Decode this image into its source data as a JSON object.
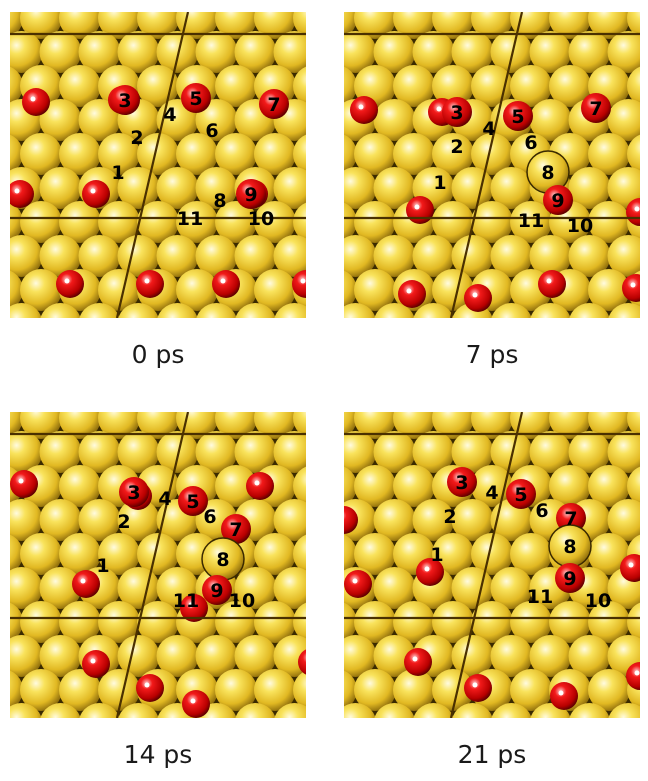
{
  "panels": [
    {
      "caption": "0 ps",
      "oxygen": [
        [
          26,
          90
        ],
        [
          112,
          88
        ],
        [
          186,
          86
        ],
        [
          264,
          92
        ],
        [
          86,
          182
        ],
        [
          244,
          182
        ],
        [
          10,
          182
        ],
        [
          320,
          182
        ],
        [
          60,
          272
        ],
        [
          140,
          272
        ],
        [
          216,
          272
        ],
        [
          296,
          272
        ]
      ],
      "labeled": [
        {
          "text": "1",
          "x": 108,
          "y": 160,
          "red": false,
          "ring": false
        },
        {
          "text": "2",
          "x": 127,
          "y": 125,
          "red": false,
          "ring": false
        },
        {
          "text": "3",
          "x": 115,
          "y": 88,
          "red": true,
          "ring": false
        },
        {
          "text": "4",
          "x": 160,
          "y": 102,
          "red": false,
          "ring": false
        },
        {
          "text": "5",
          "x": 186,
          "y": 86,
          "red": true,
          "ring": false
        },
        {
          "text": "6",
          "x": 202,
          "y": 118,
          "red": false,
          "ring": false
        },
        {
          "text": "7",
          "x": 264,
          "y": 92,
          "red": true,
          "ring": false
        },
        {
          "text": "8",
          "x": 210,
          "y": 188,
          "red": false,
          "ring": false
        },
        {
          "text": "9",
          "x": 241,
          "y": 182,
          "red": true,
          "ring": false
        },
        {
          "text": "10",
          "x": 251,
          "y": 206,
          "red": false,
          "ring": false
        },
        {
          "text": "11",
          "x": 180,
          "y": 206,
          "red": false,
          "ring": false
        }
      ]
    },
    {
      "caption": "7 ps",
      "oxygen": [
        [
          20,
          98
        ],
        [
          98,
          100
        ],
        [
          174,
          104
        ],
        [
          252,
          96
        ],
        [
          76,
          198
        ],
        [
          296,
          200
        ],
        [
          68,
          282
        ],
        [
          134,
          286
        ],
        [
          208,
          272
        ],
        [
          292,
          276
        ]
      ],
      "labeled": [
        {
          "text": "1",
          "x": 96,
          "y": 170,
          "red": false,
          "ring": false
        },
        {
          "text": "2",
          "x": 113,
          "y": 134,
          "red": false,
          "ring": false
        },
        {
          "text": "3",
          "x": 113,
          "y": 100,
          "red": true,
          "ring": false
        },
        {
          "text": "4",
          "x": 145,
          "y": 116,
          "red": false,
          "ring": false
        },
        {
          "text": "5",
          "x": 174,
          "y": 104,
          "red": true,
          "ring": false
        },
        {
          "text": "6",
          "x": 187,
          "y": 130,
          "red": false,
          "ring": false
        },
        {
          "text": "7",
          "x": 252,
          "y": 96,
          "red": true,
          "ring": false
        },
        {
          "text": "8",
          "x": 204,
          "y": 160,
          "red": false,
          "ring": true
        },
        {
          "text": "9",
          "x": 214,
          "y": 188,
          "red": true,
          "ring": false
        },
        {
          "text": "10",
          "x": 236,
          "y": 213,
          "red": false,
          "ring": false
        },
        {
          "text": "11",
          "x": 187,
          "y": 208,
          "red": false,
          "ring": false
        }
      ]
    },
    {
      "caption": "14 ps",
      "oxygen": [
        [
          14,
          72
        ],
        [
          128,
          84
        ],
        [
          250,
          74
        ],
        [
          76,
          172
        ],
        [
          184,
          196
        ],
        [
          302,
          250
        ],
        [
          86,
          252
        ],
        [
          140,
          276
        ],
        [
          186,
          292
        ]
      ],
      "labeled": [
        {
          "text": "1",
          "x": 93,
          "y": 153,
          "red": false,
          "ring": false
        },
        {
          "text": "2",
          "x": 114,
          "y": 109,
          "red": false,
          "ring": false
        },
        {
          "text": "3",
          "x": 124,
          "y": 80,
          "red": true,
          "ring": false
        },
        {
          "text": "4",
          "x": 155,
          "y": 86,
          "red": false,
          "ring": false
        },
        {
          "text": "5",
          "x": 183,
          "y": 89,
          "red": true,
          "ring": false
        },
        {
          "text": "6",
          "x": 200,
          "y": 104,
          "red": false,
          "ring": false
        },
        {
          "text": "7",
          "x": 226,
          "y": 117,
          "red": true,
          "ring": false
        },
        {
          "text": "8",
          "x": 213,
          "y": 147,
          "red": false,
          "ring": true
        },
        {
          "text": "9",
          "x": 207,
          "y": 178,
          "red": true,
          "ring": false
        },
        {
          "text": "10",
          "x": 232,
          "y": 188,
          "red": false,
          "ring": false
        },
        {
          "text": "11",
          "x": 176,
          "y": 188,
          "red": false,
          "ring": false
        }
      ]
    },
    {
      "caption": "21 ps",
      "oxygen": [
        [
          0,
          108
        ],
        [
          14,
          172
        ],
        [
          86,
          160
        ],
        [
          290,
          156
        ],
        [
          74,
          250
        ],
        [
          134,
          276
        ],
        [
          220,
          284
        ],
        [
          296,
          264
        ]
      ],
      "labeled": [
        {
          "text": "1",
          "x": 93,
          "y": 142,
          "red": false,
          "ring": false
        },
        {
          "text": "2",
          "x": 106,
          "y": 104,
          "red": false,
          "ring": false
        },
        {
          "text": "3",
          "x": 118,
          "y": 70,
          "red": true,
          "ring": false
        },
        {
          "text": "4",
          "x": 148,
          "y": 80,
          "red": false,
          "ring": false
        },
        {
          "text": "5",
          "x": 177,
          "y": 82,
          "red": true,
          "ring": false
        },
        {
          "text": "6",
          "x": 198,
          "y": 98,
          "red": false,
          "ring": false
        },
        {
          "text": "7",
          "x": 227,
          "y": 106,
          "red": true,
          "ring": false
        },
        {
          "text": "8",
          "x": 226,
          "y": 134,
          "red": false,
          "ring": true
        },
        {
          "text": "9",
          "x": 226,
          "y": 166,
          "red": true,
          "ring": false
        },
        {
          "text": "10",
          "x": 254,
          "y": 188,
          "red": false,
          "ring": false
        },
        {
          "text": "11",
          "x": 196,
          "y": 184,
          "red": false,
          "ring": false
        }
      ]
    }
  ]
}
